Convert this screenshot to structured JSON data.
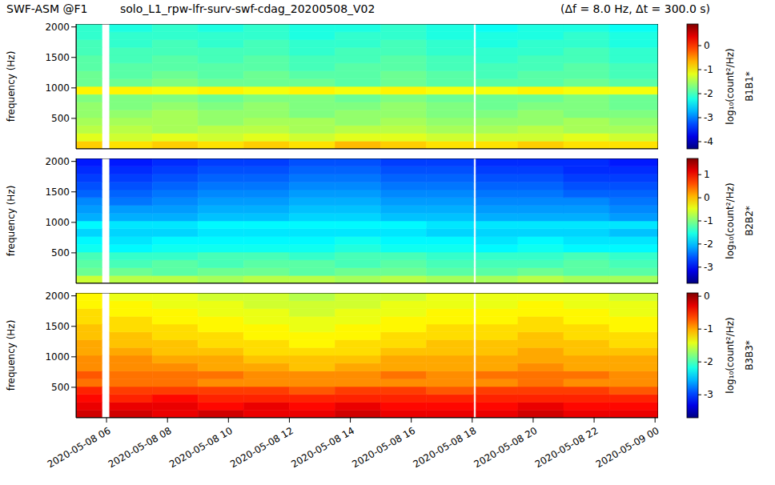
{
  "title": "SWF-ASM @F1",
  "subtitle": "solo_L1_rpw-lfr-surv-swf-cdag_20200508_V02",
  "annotation": "(Δf = 8.0 Hz, Δt = 300.0 s)",
  "chart_data": [
    {
      "type": "heatmap",
      "label": "B1B1*",
      "ylabel": "frequency (Hz)",
      "tick_labels": "y",
      "xlim": [
        5.0,
        24.1
      ],
      "xticks": [
        {
          "value": 6,
          "label": "2020-05-08 06"
        },
        {
          "value": 8,
          "label": "2020-05-08 08"
        },
        {
          "value": 10,
          "label": "2020-05-08 10"
        },
        {
          "value": 12,
          "label": "2020-05-08 12"
        },
        {
          "value": 14,
          "label": "2020-05-08 14"
        },
        {
          "value": 16,
          "label": "2020-05-08 16"
        },
        {
          "value": 18,
          "label": "2020-05-08 18"
        },
        {
          "value": 20,
          "label": "2020-05-08 20"
        },
        {
          "value": 22,
          "label": "2020-05-08 22"
        },
        {
          "value": 24,
          "label": "2020-05-09 00"
        }
      ],
      "ylim": [
        0,
        2048
      ],
      "yticks": [
        500,
        1000,
        1500,
        2000
      ],
      "x_edges": [
        5.0,
        5.85,
        6.1,
        7.5,
        9,
        10.5,
        12,
        13.5,
        15,
        16.5,
        18.05,
        18.12,
        19.5,
        21,
        22.5,
        24.1
      ],
      "y_edges": [
        0,
        128,
        256,
        384,
        512,
        640,
        768,
        896,
        1024,
        1152,
        1280,
        1408,
        1536,
        1664,
        1792,
        1920,
        2048
      ],
      "zlim": [
        -4.3,
        0.9
      ],
      "zticks": [
        -4,
        -3,
        -2,
        -1,
        0
      ],
      "zlabel": "log₁₀(count²/Hz)",
      "z": [
        [
          -0.8,
          null,
          -0.9,
          -0.8,
          -0.9,
          -0.8,
          -0.9,
          -0.7,
          -0.8,
          -0.9,
          null,
          -0.9,
          -0.8,
          -0.9,
          -0.9
        ],
        [
          -1.2,
          null,
          -1.3,
          -1.2,
          -1.3,
          -1.2,
          -1.3,
          -1.2,
          -1.2,
          -1.3,
          null,
          -1.3,
          -1.3,
          -1.2,
          -1.3
        ],
        [
          -1.4,
          null,
          -1.4,
          -1.5,
          -1.4,
          -1.4,
          -1.5,
          -1.4,
          -1.4,
          -1.5,
          null,
          -1.5,
          -1.4,
          -1.5,
          -1.5
        ],
        [
          -1.5,
          null,
          -1.5,
          -1.5,
          -1.6,
          -1.5,
          -1.5,
          -1.6,
          -1.5,
          -1.6,
          null,
          -1.6,
          -1.6,
          -1.5,
          -1.6
        ],
        [
          -1.6,
          null,
          -1.6,
          -1.5,
          -1.6,
          -1.6,
          -1.7,
          -1.6,
          -1.6,
          -1.7,
          null,
          -1.7,
          -1.6,
          -1.7,
          -1.7
        ],
        [
          -1.6,
          null,
          -1.7,
          -1.6,
          -1.7,
          -1.6,
          -1.7,
          -1.7,
          -1.6,
          -1.7,
          null,
          -1.8,
          -1.7,
          -1.7,
          -1.8
        ],
        [
          -1.7,
          null,
          -1.7,
          -1.7,
          -1.8,
          -1.7,
          -1.7,
          -1.8,
          -1.7,
          -1.8,
          null,
          -1.8,
          -1.8,
          -1.7,
          -1.8
        ],
        [
          -1.0,
          null,
          -1.0,
          -1.1,
          -1.0,
          -1.1,
          -1.0,
          -1.1,
          -1.0,
          -1.1,
          null,
          -1.1,
          -1.0,
          -1.1,
          -1.1
        ],
        [
          -1.8,
          null,
          -1.8,
          -1.7,
          -1.8,
          -1.8,
          -1.8,
          -1.9,
          -1.8,
          -1.9,
          null,
          -1.9,
          -1.9,
          -1.8,
          -1.9
        ],
        [
          -1.8,
          null,
          -1.9,
          -1.8,
          -1.9,
          -1.8,
          -1.9,
          -1.9,
          -1.8,
          -1.9,
          null,
          -2.0,
          -1.9,
          -1.9,
          -2.0
        ],
        [
          -1.9,
          null,
          -1.9,
          -1.9,
          -1.9,
          -1.9,
          -2.0,
          -1.9,
          -1.9,
          -2.0,
          null,
          -2.0,
          -2.0,
          -1.9,
          -2.0
        ],
        [
          -1.9,
          null,
          -2.0,
          -1.9,
          -2.0,
          -1.9,
          -2.0,
          -2.0,
          -1.9,
          -2.0,
          null,
          -2.1,
          -2.0,
          -2.0,
          -2.1
        ],
        [
          -2.0,
          null,
          -2.0,
          -2.0,
          -2.0,
          -2.0,
          -2.1,
          -2.0,
          -2.0,
          -2.1,
          null,
          -2.1,
          -2.1,
          -2.0,
          -2.1
        ],
        [
          -2.0,
          null,
          -2.1,
          -2.0,
          -2.1,
          -2.0,
          -2.1,
          -2.1,
          -2.0,
          -2.1,
          null,
          -2.2,
          -2.1,
          -2.1,
          -2.2
        ],
        [
          -2.1,
          null,
          -2.1,
          -2.1,
          -2.1,
          -2.1,
          -2.2,
          -2.1,
          -2.1,
          -2.2,
          null,
          -2.2,
          -2.2,
          -2.1,
          -2.2
        ],
        [
          -2.1,
          null,
          -2.2,
          -2.1,
          -2.2,
          -2.1,
          -2.2,
          -2.2,
          -2.1,
          -2.2,
          null,
          -2.3,
          -2.2,
          -2.2,
          -2.3
        ]
      ]
    },
    {
      "type": "heatmap",
      "label": "B2B2*",
      "ylabel": "frequency (Hz)",
      "tick_labels": "y",
      "xlim": [
        5.0,
        24.1
      ],
      "xticks": [
        {
          "value": 6,
          "label": "2020-05-08 06"
        },
        {
          "value": 8,
          "label": "2020-05-08 08"
        },
        {
          "value": 10,
          "label": "2020-05-08 10"
        },
        {
          "value": 12,
          "label": "2020-05-08 12"
        },
        {
          "value": 14,
          "label": "2020-05-08 14"
        },
        {
          "value": 16,
          "label": "2020-05-08 16"
        },
        {
          "value": 18,
          "label": "2020-05-08 18"
        },
        {
          "value": 20,
          "label": "2020-05-08 20"
        },
        {
          "value": 22,
          "label": "2020-05-08 22"
        },
        {
          "value": 24,
          "label": "2020-05-09 00"
        }
      ],
      "ylim": [
        0,
        2048
      ],
      "yticks": [
        500,
        1000,
        1500,
        2000
      ],
      "x_edges": [
        5.0,
        5.85,
        6.1,
        7.5,
        9,
        10.5,
        12,
        13.5,
        15,
        16.5,
        18.05,
        18.12,
        19.5,
        21,
        22.5,
        24.1
      ],
      "y_edges": [
        0,
        128,
        256,
        384,
        512,
        640,
        768,
        896,
        1024,
        1152,
        1280,
        1408,
        1536,
        1664,
        1792,
        1920,
        2048
      ],
      "zlim": [
        -3.7,
        1.7
      ],
      "zticks": [
        -3,
        -2,
        -1,
        0,
        1
      ],
      "zlabel": "log₁₀(count²/Hz)",
      "z": [
        [
          -0.6,
          null,
          -0.7,
          -0.7,
          -0.8,
          -0.7,
          -0.7,
          -0.8,
          -0.7,
          -0.8,
          null,
          -0.8,
          -0.7,
          -0.8,
          -0.8
        ],
        [
          -1.1,
          null,
          -1.1,
          -1.2,
          -1.1,
          -1.1,
          -1.2,
          -1.1,
          -1.1,
          -1.2,
          null,
          -1.2,
          -1.1,
          -1.2,
          -1.2
        ],
        [
          -1.2,
          null,
          -1.3,
          -1.2,
          -1.3,
          -1.2,
          -1.2,
          -1.3,
          -1.2,
          -1.3,
          null,
          -1.3,
          -1.3,
          -1.2,
          -1.3
        ],
        [
          -1.3,
          null,
          -1.4,
          -1.4,
          -1.3,
          -1.3,
          -1.4,
          -1.3,
          -1.3,
          -1.4,
          null,
          -1.4,
          -1.4,
          -1.3,
          -1.4
        ],
        [
          -1.6,
          null,
          -1.7,
          -1.6,
          -1.6,
          -1.6,
          -1.6,
          -1.5,
          -1.6,
          -1.6,
          null,
          -1.7,
          -1.6,
          -1.7,
          -1.7
        ],
        [
          -1.7,
          null,
          -1.8,
          -1.7,
          -1.7,
          -1.7,
          -1.7,
          -1.6,
          -1.7,
          -1.7,
          null,
          -1.8,
          -1.7,
          -1.8,
          -1.8
        ],
        [
          -1.9,
          null,
          -1.9,
          -1.9,
          -1.8,
          -1.8,
          -1.8,
          -1.8,
          -1.8,
          -1.9,
          null,
          -1.9,
          -1.9,
          -1.9,
          -2.0
        ],
        [
          -1.7,
          null,
          -1.8,
          -1.8,
          -1.7,
          -1.7,
          -1.7,
          -1.7,
          -1.7,
          -1.8,
          null,
          -1.8,
          -1.8,
          -1.8,
          -1.8
        ],
        [
          -2.1,
          null,
          -2.1,
          -2.1,
          -2.0,
          -2.0,
          -1.9,
          -1.9,
          -2.0,
          -2.0,
          null,
          -2.1,
          -2.1,
          -2.1,
          -2.2
        ],
        [
          -2.2,
          null,
          -2.2,
          -2.2,
          -2.1,
          -2.1,
          -2.0,
          -2.0,
          -2.1,
          -2.1,
          null,
          -2.2,
          -2.2,
          -2.2,
          -2.3
        ],
        [
          -2.3,
          null,
          -2.4,
          -2.3,
          -2.2,
          -2.2,
          -2.1,
          -2.1,
          -2.2,
          -2.2,
          null,
          -2.3,
          -2.3,
          -2.3,
          -2.4
        ],
        [
          -2.5,
          null,
          -2.5,
          -2.4,
          -2.3,
          -2.3,
          -2.2,
          -2.2,
          -2.3,
          -2.3,
          null,
          -2.4,
          -2.4,
          -2.5,
          -2.5
        ],
        [
          -2.6,
          null,
          -2.6,
          -2.5,
          -2.4,
          -2.4,
          -2.3,
          -2.3,
          -2.4,
          -2.4,
          null,
          -2.5,
          -2.5,
          -2.6,
          -2.6
        ],
        [
          -2.7,
          null,
          -2.7,
          -2.6,
          -2.5,
          -2.5,
          -2.4,
          -2.4,
          -2.5,
          -2.5,
          null,
          -2.6,
          -2.6,
          -2.7,
          -2.7
        ],
        [
          -2.8,
          null,
          -2.8,
          -2.7,
          -2.6,
          -2.6,
          -2.5,
          -2.5,
          -2.6,
          -2.6,
          null,
          -2.7,
          -2.7,
          -2.8,
          -2.8
        ],
        [
          -2.9,
          null,
          -2.9,
          -2.8,
          -2.7,
          -2.7,
          -2.6,
          -2.6,
          -2.7,
          -2.7,
          null,
          -2.8,
          -2.8,
          -2.8,
          -2.9
        ]
      ]
    },
    {
      "type": "heatmap",
      "label": "B3B3*",
      "ylabel": "frequency (Hz)",
      "xlim": [
        5.0,
        24.1
      ],
      "xticks": [
        {
          "value": 6,
          "label": "2020-05-08 06"
        },
        {
          "value": 8,
          "label": "2020-05-08 08"
        },
        {
          "value": 10,
          "label": "2020-05-08 10"
        },
        {
          "value": 12,
          "label": "2020-05-08 12"
        },
        {
          "value": 14,
          "label": "2020-05-08 14"
        },
        {
          "value": 16,
          "label": "2020-05-08 16"
        },
        {
          "value": 18,
          "label": "2020-05-08 18"
        },
        {
          "value": 20,
          "label": "2020-05-08 20"
        },
        {
          "value": 22,
          "label": "2020-05-08 22"
        },
        {
          "value": 24,
          "label": "2020-05-09 00"
        }
      ],
      "ylim": [
        0,
        2048
      ],
      "yticks": [
        500,
        1000,
        1500,
        2000
      ],
      "x_edges": [
        5.0,
        5.85,
        6.1,
        7.5,
        9,
        10.5,
        12,
        13.5,
        15,
        16.5,
        18.05,
        18.12,
        19.5,
        21,
        22.5,
        24.1
      ],
      "y_edges": [
        0,
        128,
        256,
        384,
        512,
        640,
        768,
        896,
        1024,
        1152,
        1280,
        1408,
        1536,
        1664,
        1792,
        1920,
        2048
      ],
      "zlim": [
        -3.7,
        0.1
      ],
      "zticks": [
        -3,
        -2,
        -1,
        0
      ],
      "zlabel": "log₁₀(count²/Hz)",
      "z": [
        [
          -0.2,
          null,
          -0.2,
          -0.3,
          -0.2,
          -0.3,
          -0.3,
          -0.2,
          -0.3,
          -0.3,
          null,
          -0.3,
          -0.2,
          -0.3,
          -0.3
        ],
        [
          -0.3,
          null,
          -0.3,
          -0.3,
          -0.4,
          -0.3,
          -0.4,
          -0.3,
          -0.4,
          -0.4,
          null,
          -0.4,
          -0.3,
          -0.4,
          -0.4
        ],
        [
          -0.4,
          null,
          -0.5,
          -0.4,
          -0.5,
          -0.5,
          -0.5,
          -0.5,
          -0.5,
          -0.5,
          null,
          -0.5,
          -0.5,
          -0.5,
          -0.5
        ],
        [
          -0.5,
          null,
          -0.6,
          -0.6,
          -0.6,
          -0.6,
          -0.7,
          -0.6,
          -0.6,
          -0.7,
          null,
          -0.6,
          -0.6,
          -0.6,
          -0.7
        ],
        [
          -0.8,
          null,
          -0.8,
          -0.8,
          -0.9,
          -0.9,
          -0.9,
          -0.9,
          -0.9,
          -0.9,
          null,
          -0.9,
          -0.8,
          -0.9,
          -0.9
        ],
        [
          -0.7,
          null,
          -0.8,
          -0.8,
          -0.8,
          -0.9,
          -0.9,
          -0.9,
          -0.8,
          -0.9,
          null,
          -0.8,
          -0.8,
          -0.8,
          -0.9
        ],
        [
          -0.9,
          null,
          -0.9,
          -0.9,
          -1.0,
          -1.0,
          -1.1,
          -1.0,
          -1.0,
          -1.0,
          null,
          -1.0,
          -0.9,
          -1.0,
          -1.0
        ],
        [
          -0.9,
          null,
          -0.9,
          -1.0,
          -1.0,
          -1.1,
          -1.1,
          -1.1,
          -1.0,
          -1.0,
          null,
          -1.0,
          -1.0,
          -1.0,
          -1.0
        ],
        [
          -1.0,
          null,
          -1.0,
          -1.1,
          -1.1,
          -1.2,
          -1.2,
          -1.2,
          -1.1,
          -1.1,
          null,
          -1.1,
          -1.0,
          -1.1,
          -1.1
        ],
        [
          -1.0,
          null,
          -1.1,
          -1.1,
          -1.2,
          -1.2,
          -1.3,
          -1.2,
          -1.2,
          -1.1,
          null,
          -1.1,
          -1.1,
          -1.1,
          -1.2
        ],
        [
          -1.1,
          null,
          -1.1,
          -1.2,
          -1.2,
          -1.3,
          -1.3,
          -1.3,
          -1.2,
          -1.2,
          null,
          -1.2,
          -1.1,
          -1.2,
          -1.2
        ],
        [
          -1.1,
          null,
          -1.2,
          -1.2,
          -1.3,
          -1.3,
          -1.4,
          -1.3,
          -1.3,
          -1.2,
          null,
          -1.2,
          -1.2,
          -1.2,
          -1.3
        ],
        [
          -1.2,
          null,
          -1.2,
          -1.3,
          -1.3,
          -1.4,
          -1.4,
          -1.4,
          -1.3,
          -1.3,
          null,
          -1.3,
          -1.2,
          -1.3,
          -1.3
        ],
        [
          -1.2,
          null,
          -1.3,
          -1.3,
          -1.4,
          -1.4,
          -1.5,
          -1.4,
          -1.4,
          -1.3,
          null,
          -1.3,
          -1.3,
          -1.3,
          -1.4
        ],
        [
          -1.3,
          null,
          -1.3,
          -1.4,
          -1.4,
          -1.5,
          -1.5,
          -1.5,
          -1.4,
          -1.4,
          null,
          -1.4,
          -1.3,
          -1.4,
          -1.4
        ],
        [
          -1.3,
          null,
          -1.4,
          -1.4,
          -1.5,
          -1.5,
          -1.6,
          -1.5,
          -1.5,
          -1.4,
          null,
          -1.4,
          -1.4,
          -1.4,
          -1.5
        ]
      ]
    }
  ]
}
